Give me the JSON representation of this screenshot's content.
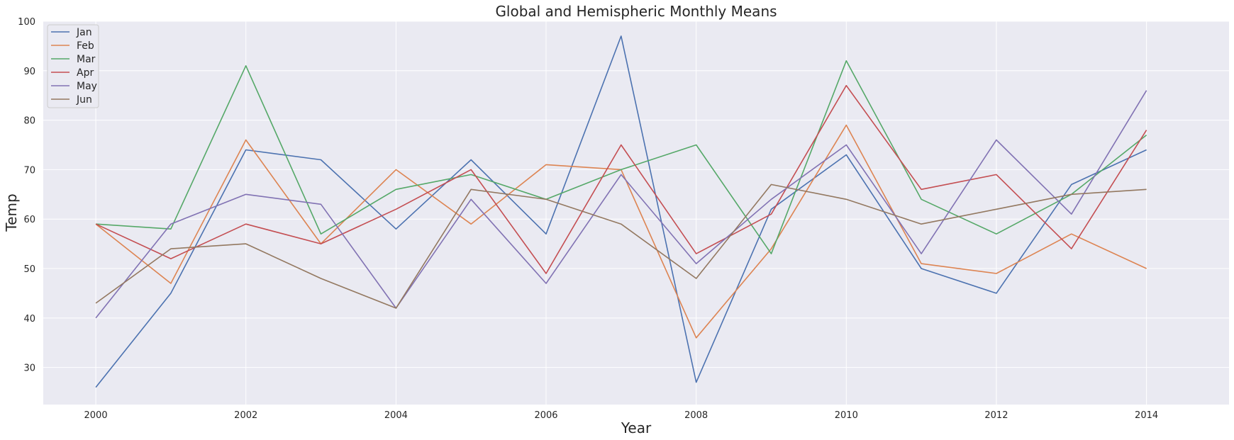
{
  "chart_data": {
    "type": "line",
    "title": "Global and Hemispheric Monthly Means",
    "xlabel": "Year",
    "ylabel": "Temp",
    "x": [
      2000,
      2001,
      2002,
      2003,
      2004,
      2005,
      2006,
      2007,
      2008,
      2009,
      2010,
      2011,
      2012,
      2013,
      2014
    ],
    "xlim": [
      1999.3,
      2015.1
    ],
    "ylim": [
      22.5,
      100
    ],
    "xticks": [
      2000,
      2002,
      2004,
      2006,
      2008,
      2010,
      2012,
      2014
    ],
    "yticks": [
      30,
      40,
      50,
      60,
      70,
      80,
      90,
      100
    ],
    "grid": true,
    "legend_position": "top-left",
    "series": [
      {
        "name": "Jan",
        "color": "#4c72b0",
        "values": [
          26,
          45,
          74,
          72,
          58,
          72,
          57,
          97,
          27,
          62,
          73,
          50,
          45,
          67,
          74
        ]
      },
      {
        "name": "Feb",
        "color": "#dd8452",
        "values": [
          59,
          47,
          76,
          55,
          70,
          59,
          71,
          70,
          36,
          54,
          79,
          51,
          49,
          57,
          50
        ]
      },
      {
        "name": "Mar",
        "color": "#55a868",
        "values": [
          59,
          58,
          91,
          57,
          66,
          69,
          64,
          70,
          75,
          53,
          92,
          64,
          57,
          65,
          77
        ]
      },
      {
        "name": "Apr",
        "color": "#c44e52",
        "values": [
          59,
          52,
          59,
          55,
          62,
          70,
          49,
          75,
          53,
          61,
          87,
          66,
          69,
          54,
          78
        ]
      },
      {
        "name": "May",
        "color": "#8172b3",
        "values": [
          40,
          59,
          65,
          63,
          42,
          64,
          47,
          69,
          51,
          64,
          75,
          53,
          76,
          61,
          86
        ]
      },
      {
        "name": "Jun",
        "color": "#937860",
        "values": [
          43,
          54,
          55,
          48,
          42,
          66,
          64,
          59,
          48,
          67,
          64,
          59,
          62,
          65,
          66
        ]
      }
    ]
  }
}
